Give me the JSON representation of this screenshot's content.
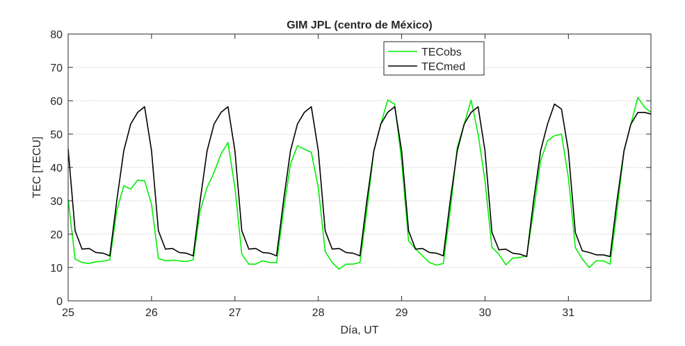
{
  "chart_data": {
    "type": "line",
    "title": "GIM JPL (centro de México)",
    "xlabel": "Día, UT",
    "ylabel": "TEC [TECU]",
    "xlim": [
      25,
      31.99
    ],
    "ylim": [
      0,
      80
    ],
    "x_ticks": [
      25,
      26,
      27,
      28,
      29,
      30,
      31
    ],
    "x_tick_labels": [
      "25",
      "26",
      "27",
      "28",
      "29",
      "30",
      "31"
    ],
    "y_ticks": [
      0,
      10,
      20,
      30,
      40,
      50,
      60,
      70,
      80
    ],
    "y_tick_labels": [
      "0",
      "10",
      "20",
      "30",
      "40",
      "50",
      "60",
      "70",
      "80"
    ],
    "grid": "y-major-dotted",
    "legend_position": "top-right",
    "series": [
      {
        "name": "TECobs",
        "color": "#00ee00",
        "x": [
          25.0,
          25.083,
          25.167,
          25.25,
          25.333,
          25.417,
          25.5,
          25.583,
          25.667,
          25.75,
          25.833,
          25.917,
          26.0,
          26.083,
          26.167,
          26.25,
          26.333,
          26.417,
          26.5,
          26.583,
          26.667,
          26.75,
          26.833,
          26.917,
          27.0,
          27.083,
          27.167,
          27.25,
          27.333,
          27.417,
          27.5,
          27.583,
          27.667,
          27.75,
          27.833,
          27.917,
          28.0,
          28.083,
          28.167,
          28.25,
          28.333,
          28.417,
          28.5,
          28.583,
          28.667,
          28.75,
          28.833,
          28.917,
          29.0,
          29.083,
          29.167,
          29.25,
          29.333,
          29.417,
          29.5,
          29.583,
          29.667,
          29.75,
          29.833,
          29.917,
          30.0,
          30.083,
          30.167,
          30.25,
          30.333,
          30.417,
          30.5,
          30.583,
          30.667,
          30.75,
          30.833,
          30.917,
          31.0,
          31.083,
          31.167,
          31.25,
          31.333,
          31.417,
          31.5,
          31.583,
          31.667,
          31.75,
          31.833,
          31.917,
          31.99
        ],
        "values": [
          30.5,
          12.5,
          11.5,
          11.2,
          11.7,
          11.9,
          12.3,
          27.0,
          34.5,
          33.5,
          36.2,
          36.0,
          29.0,
          12.7,
          12.0,
          12.2,
          12.0,
          11.8,
          12.3,
          27.0,
          34.0,
          38.5,
          44.0,
          47.5,
          34.0,
          14.0,
          11.0,
          11.0,
          12.0,
          11.5,
          11.5,
          27.0,
          41.0,
          46.5,
          45.5,
          44.5,
          34.0,
          14.8,
          11.5,
          9.5,
          11.0,
          11.0,
          11.5,
          27.0,
          45.0,
          53.0,
          60.2,
          59.0,
          42.0,
          18.0,
          15.5,
          13.5,
          11.5,
          10.7,
          11.2,
          27.0,
          46.0,
          53.0,
          60.2,
          50.0,
          36.0,
          16.0,
          14.0,
          10.8,
          12.8,
          13.0,
          13.5,
          27.0,
          42.0,
          48.0,
          49.5,
          50.0,
          37.0,
          16.0,
          12.5,
          10.0,
          12.0,
          12.0,
          11.0,
          27.0,
          45.0,
          53.0,
          61.0,
          58.0,
          56.5
        ]
      },
      {
        "name": "TECmed",
        "color": "#000000",
        "x": [
          25.0,
          25.083,
          25.167,
          25.25,
          25.333,
          25.417,
          25.5,
          25.583,
          25.667,
          25.75,
          25.833,
          25.917,
          26.0,
          26.083,
          26.167,
          26.25,
          26.333,
          26.417,
          26.5,
          26.583,
          26.667,
          26.75,
          26.833,
          26.917,
          27.0,
          27.083,
          27.167,
          27.25,
          27.333,
          27.417,
          27.5,
          27.583,
          27.667,
          27.75,
          27.833,
          27.917,
          28.0,
          28.083,
          28.167,
          28.25,
          28.333,
          28.417,
          28.5,
          28.583,
          28.667,
          28.75,
          28.833,
          28.917,
          29.0,
          29.083,
          29.167,
          29.25,
          29.333,
          29.417,
          29.5,
          29.583,
          29.667,
          29.75,
          29.833,
          29.917,
          30.0,
          30.083,
          30.167,
          30.25,
          30.333,
          30.417,
          30.5,
          30.583,
          30.667,
          30.75,
          30.833,
          30.917,
          31.0,
          31.083,
          31.167,
          31.25,
          31.333,
          31.417,
          31.5,
          31.583,
          31.667,
          31.75,
          31.833,
          31.917,
          31.99
        ],
        "values": [
          45.5,
          21.0,
          15.5,
          15.7,
          14.5,
          14.3,
          13.5,
          30.0,
          45.0,
          53.0,
          56.5,
          58.2,
          45.0,
          21.0,
          15.5,
          15.7,
          14.5,
          14.3,
          13.5,
          30.0,
          45.0,
          53.0,
          56.5,
          58.2,
          45.0,
          21.0,
          15.5,
          15.7,
          14.5,
          14.3,
          13.5,
          30.0,
          45.0,
          53.0,
          56.5,
          58.2,
          45.0,
          21.0,
          15.5,
          15.7,
          14.5,
          14.3,
          13.5,
          30.0,
          45.0,
          53.0,
          56.5,
          58.2,
          45.0,
          21.0,
          15.5,
          15.7,
          14.5,
          14.3,
          13.5,
          30.0,
          45.0,
          53.0,
          56.5,
          58.2,
          45.0,
          20.5,
          15.3,
          15.5,
          14.3,
          14.0,
          13.3,
          30.0,
          45.0,
          53.0,
          59.0,
          57.5,
          45.0,
          20.5,
          15.0,
          14.5,
          13.8,
          13.8,
          13.3,
          30.0,
          45.0,
          53.0,
          56.5,
          56.5,
          56.0
        ]
      }
    ]
  }
}
